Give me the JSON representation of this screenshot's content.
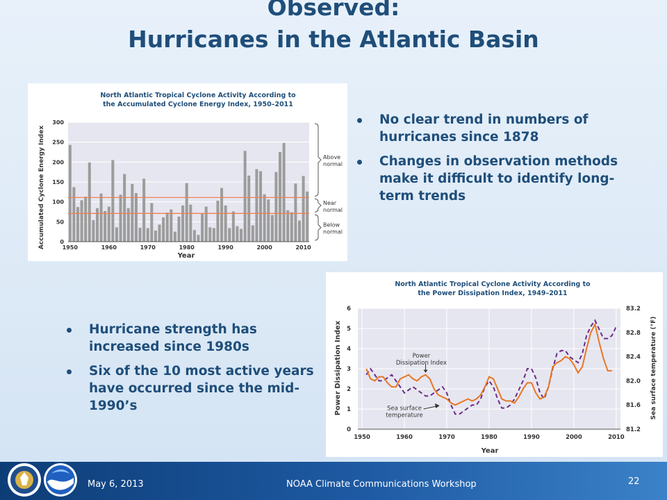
{
  "slide": {
    "title_line1": "Observed:",
    "title_line2": "Hurricanes in the Atlantic Basin"
  },
  "bullets_top": [
    "No clear trend in numbers of hurricanes since 1878",
    "Changes in observation methods make it difficult to identify long-term trends"
  ],
  "bullets_bottom": [
    "Hurricane strength has increased since 1980s",
    "Six of the 10 most active years have occurred since the mid-1990’s"
  ],
  "footer": {
    "date": "May 6, 2013",
    "event": "NOAA Climate Communications Workshop",
    "page": "22"
  },
  "colors": {
    "title": "#1f4e7a",
    "bar": "#9c9c9c",
    "normal_line": "#f08050",
    "pdi_line": "#e87722",
    "sst_line": "#6a2c8a",
    "footer": "#1e5aa3"
  },
  "chart_data": [
    {
      "type": "bar",
      "title_line1": "North Atlantic Tropical Cyclone Activity According to",
      "title_line2": "the Accumulated Cyclone Energy Index, 1950–2011",
      "xlabel": "Year",
      "ylabel": "Accumulated Cyclone Energy Index",
      "xlim": [
        1950,
        2011
      ],
      "ylim": [
        0,
        300
      ],
      "xticks": [
        1950,
        1960,
        1970,
        1980,
        1990,
        2000,
        2010
      ],
      "yticks": [
        0,
        50,
        100,
        150,
        200,
        250,
        300
      ],
      "reference_lines": [
        71,
        111
      ],
      "brackets": [
        {
          "label_line1": "Above",
          "label_line2": "normal"
        },
        {
          "label_line1": "Near",
          "label_line2": "normal"
        },
        {
          "label_line1": "Below",
          "label_line2": "normal"
        }
      ],
      "x": [
        1950,
        1951,
        1952,
        1953,
        1954,
        1955,
        1956,
        1957,
        1958,
        1959,
        1960,
        1961,
        1962,
        1963,
        1964,
        1965,
        1966,
        1967,
        1968,
        1969,
        1970,
        1971,
        1972,
        1973,
        1974,
        1975,
        1976,
        1977,
        1978,
        1979,
        1980,
        1981,
        1982,
        1983,
        1984,
        1985,
        1986,
        1987,
        1988,
        1989,
        1990,
        1991,
        1992,
        1993,
        1994,
        1995,
        1996,
        1997,
        1998,
        1999,
        2000,
        2001,
        2002,
        2003,
        2004,
        2005,
        2006,
        2007,
        2008,
        2009,
        2010,
        2011
      ],
      "values": [
        243,
        137,
        87,
        104,
        113,
        199,
        54,
        84,
        121,
        77,
        88,
        205,
        36,
        118,
        170,
        84,
        145,
        122,
        35,
        158,
        34,
        97,
        28,
        43,
        61,
        73,
        81,
        25,
        63,
        91,
        147,
        93,
        29,
        17,
        71,
        88,
        36,
        34,
        103,
        135,
        91,
        34,
        76,
        39,
        32,
        228,
        166,
        41,
        182,
        177,
        119,
        106,
        67,
        175,
        225,
        248,
        79,
        74,
        146,
        53,
        165,
        126
      ]
    },
    {
      "type": "line",
      "title_line1": "North Atlantic Tropical Cyclone Activity According to",
      "title_line2": "the Power Dissipation Index, 1949–2011",
      "xlabel": "Year",
      "ylabel": "Power Dissipation Index",
      "y2label": "Sea surface temperature (°F)",
      "xlim": [
        1949,
        2011
      ],
      "ylim": [
        0,
        6
      ],
      "y2lim": [
        81.2,
        83.2
      ],
      "xticks": [
        1950,
        1960,
        1970,
        1980,
        1990,
        2000,
        2010
      ],
      "yticks": [
        0,
        1,
        2,
        3,
        4,
        5,
        6
      ],
      "y2ticks": [
        "81.2",
        "81.6",
        "82.0",
        "82.4",
        "82.8",
        "83.2"
      ],
      "annotations": [
        {
          "label_line1": "Power",
          "label_line2": "Dissipation Index"
        },
        {
          "label_line1": "Sea surface",
          "label_line2": "temperature"
        }
      ],
      "series": [
        {
          "name": "Power Dissipation Index",
          "x": [
            1951,
            1952,
            1953,
            1954,
            1955,
            1956,
            1957,
            1958,
            1959,
            1960,
            1961,
            1962,
            1963,
            1964,
            1965,
            1966,
            1967,
            1968,
            1969,
            1970,
            1971,
            1972,
            1973,
            1974,
            1975,
            1976,
            1977,
            1978,
            1979,
            1980,
            1981,
            1982,
            1983,
            1984,
            1985,
            1986,
            1987,
            1988,
            1989,
            1990,
            1991,
            1992,
            1993,
            1994,
            1995,
            1996,
            1997,
            1998,
            1999,
            2000,
            2001,
            2002,
            2003,
            2004,
            2005,
            2006,
            2007,
            2008,
            2009
          ],
          "values": [
            3.0,
            2.5,
            2.4,
            2.6,
            2.6,
            2.3,
            2.1,
            2.1,
            2.5,
            2.6,
            2.7,
            2.5,
            2.4,
            2.6,
            2.7,
            2.5,
            2.0,
            1.7,
            1.6,
            1.5,
            1.3,
            1.2,
            1.3,
            1.4,
            1.5,
            1.4,
            1.5,
            1.7,
            2.1,
            2.6,
            2.5,
            2.0,
            1.5,
            1.4,
            1.4,
            1.3,
            1.6,
            2.0,
            2.3,
            2.3,
            1.8,
            1.5,
            1.6,
            2.1,
            3.1,
            3.3,
            3.4,
            3.6,
            3.5,
            3.2,
            2.8,
            3.1,
            4.0,
            4.8,
            5.2,
            4.3,
            3.5,
            2.9,
            2.9
          ]
        },
        {
          "name": "Sea surface temperature",
          "x": [
            1951,
            1952,
            1953,
            1954,
            1955,
            1956,
            1957,
            1958,
            1959,
            1960,
            1961,
            1962,
            1963,
            1964,
            1965,
            1966,
            1967,
            1968,
            1969,
            1970,
            1971,
            1972,
            1973,
            1974,
            1975,
            1976,
            1977,
            1978,
            1979,
            1980,
            1981,
            1982,
            1983,
            1984,
            1985,
            1986,
            1987,
            1988,
            1989,
            1990,
            1991,
            1992,
            1993,
            1994,
            1995,
            1996,
            1997,
            1998,
            1999,
            2000,
            2001,
            2002,
            2003,
            2004,
            2005,
            2006,
            2007,
            2008,
            2009,
            2010
          ],
          "values": [
            82.1,
            82.2,
            82.1,
            82.0,
            82.0,
            82.05,
            82.1,
            82.0,
            81.9,
            81.8,
            81.85,
            81.9,
            81.85,
            81.8,
            81.75,
            81.75,
            81.8,
            81.85,
            81.9,
            81.8,
            81.6,
            81.45,
            81.45,
            81.5,
            81.55,
            81.6,
            81.6,
            81.7,
            81.9,
            82.0,
            81.9,
            81.7,
            81.55,
            81.55,
            81.6,
            81.7,
            81.85,
            82.0,
            82.2,
            82.2,
            82.05,
            81.8,
            81.7,
            81.9,
            82.2,
            82.45,
            82.5,
            82.5,
            82.4,
            82.35,
            82.3,
            82.45,
            82.75,
            82.9,
            83.0,
            82.85,
            82.7,
            82.7,
            82.75,
            82.9
          ]
        }
      ]
    }
  ]
}
